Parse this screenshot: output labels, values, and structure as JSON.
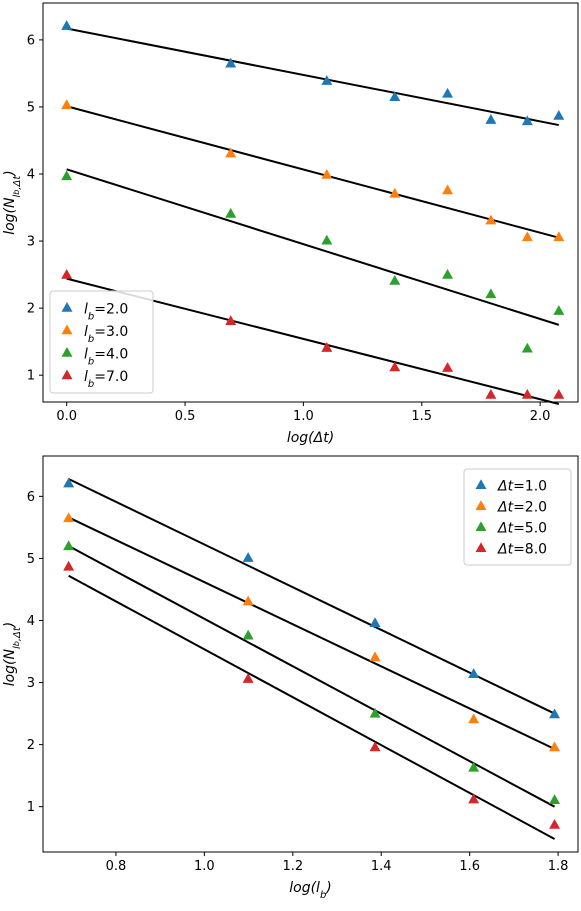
{
  "chart_data": [
    {
      "type": "scatter",
      "xlabel": "log(Δt)",
      "ylabel": "log(N_{l_b,Δt})",
      "xlim": [
        -0.1,
        2.16
      ],
      "ylim": [
        0.6,
        6.55
      ],
      "xticks": [
        "0.0",
        "0.5",
        "1.0",
        "1.5",
        "2.0"
      ],
      "yticks": [
        "1",
        "2",
        "3",
        "4",
        "5",
        "6"
      ],
      "legend": {
        "placement": "lower-left"
      },
      "series": [
        {
          "name": "l_b=2.0",
          "legend_base": "l",
          "legend_sub": "b",
          "legend_value": "=2.0",
          "color": "#1f77b4",
          "x": [
            0.0,
            0.693,
            1.099,
            1.386,
            1.609,
            1.792,
            1.946,
            2.079
          ],
          "y": [
            6.2,
            5.64,
            5.38,
            5.14,
            5.19,
            4.8,
            4.78,
            4.86
          ],
          "fit": [
            [
              0.0,
              6.17
            ],
            [
              2.079,
              4.73
            ]
          ]
        },
        {
          "name": "l_b=3.0",
          "legend_base": "l",
          "legend_sub": "b",
          "legend_value": "=3.0",
          "color": "#ff7f0e",
          "x": [
            0.0,
            0.693,
            1.099,
            1.386,
            1.609,
            1.792,
            1.946,
            2.079
          ],
          "y": [
            5.02,
            4.3,
            3.98,
            3.7,
            3.75,
            3.3,
            3.05,
            3.05
          ],
          "fit": [
            [
              0.0,
              5.01
            ],
            [
              2.079,
              3.05
            ]
          ]
        },
        {
          "name": "l_b=4.0",
          "legend_base": "l",
          "legend_sub": "b",
          "legend_value": "=4.0",
          "color": "#2ca02c",
          "x": [
            0.0,
            0.693,
            1.099,
            1.386,
            1.609,
            1.792,
            1.946,
            2.079
          ],
          "y": [
            3.96,
            3.4,
            3.0,
            2.4,
            2.49,
            2.2,
            1.39,
            1.95
          ],
          "fit": [
            [
              0.0,
              4.07
            ],
            [
              2.079,
              1.75
            ]
          ]
        },
        {
          "name": "l_b=7.0",
          "legend_base": "l",
          "legend_sub": "b",
          "legend_value": "=7.0",
          "color": "#d62728",
          "x": [
            0.0,
            0.693,
            1.099,
            1.386,
            1.609,
            1.792,
            1.946,
            2.079
          ],
          "y": [
            2.49,
            1.8,
            1.4,
            1.11,
            1.1,
            0.7,
            0.7,
            0.7
          ],
          "fit": [
            [
              0.0,
              2.44
            ],
            [
              2.079,
              0.57
            ]
          ]
        }
      ]
    },
    {
      "type": "scatter",
      "xlabel": "log(l_b)",
      "ylabel": "log(N_{l_b,Δt})",
      "xlim": [
        0.635,
        1.845
      ],
      "ylim": [
        0.27,
        6.65
      ],
      "xticks": [
        "0.8",
        "1.0",
        "1.2",
        "1.4",
        "1.6",
        "1.8"
      ],
      "yticks": [
        "1",
        "2",
        "3",
        "4",
        "5",
        "6"
      ],
      "legend": {
        "placement": "top-right"
      },
      "series": [
        {
          "name": "Δt=1.0",
          "legend_base": "Δt",
          "legend_sub": "",
          "legend_value": "=1.0",
          "color": "#1f77b4",
          "x": [
            0.693,
            1.099,
            1.386,
            1.609,
            1.792
          ],
          "y": [
            6.2,
            5.0,
            3.95,
            3.13,
            2.48
          ],
          "fit": [
            [
              0.693,
              6.28
            ],
            [
              1.792,
              2.5
            ]
          ]
        },
        {
          "name": "Δt=2.0",
          "legend_base": "Δt",
          "legend_sub": "",
          "legend_value": "=2.0",
          "color": "#ff7f0e",
          "x": [
            0.693,
            1.099,
            1.386,
            1.609,
            1.792
          ],
          "y": [
            5.64,
            4.3,
            3.4,
            2.4,
            1.95
          ],
          "fit": [
            [
              0.693,
              5.66
            ],
            [
              1.792,
              1.93
            ]
          ]
        },
        {
          "name": "Δt=5.0",
          "legend_base": "Δt",
          "legend_sub": "",
          "legend_value": "=5.0",
          "color": "#2ca02c",
          "x": [
            0.693,
            1.099,
            1.386,
            1.609,
            1.792
          ],
          "y": [
            5.19,
            3.75,
            2.49,
            1.62,
            1.1
          ],
          "fit": [
            [
              0.693,
              5.2
            ],
            [
              1.792,
              1.0
            ]
          ]
        },
        {
          "name": "Δt=8.0",
          "legend_base": "Δt",
          "legend_sub": "",
          "legend_value": "=8.0",
          "color": "#d62728",
          "x": [
            0.693,
            1.099,
            1.386,
            1.609,
            1.792
          ],
          "y": [
            4.86,
            3.05,
            1.95,
            1.11,
            0.7
          ],
          "fit": [
            [
              0.693,
              4.72
            ],
            [
              1.792,
              0.48
            ]
          ]
        }
      ]
    }
  ]
}
